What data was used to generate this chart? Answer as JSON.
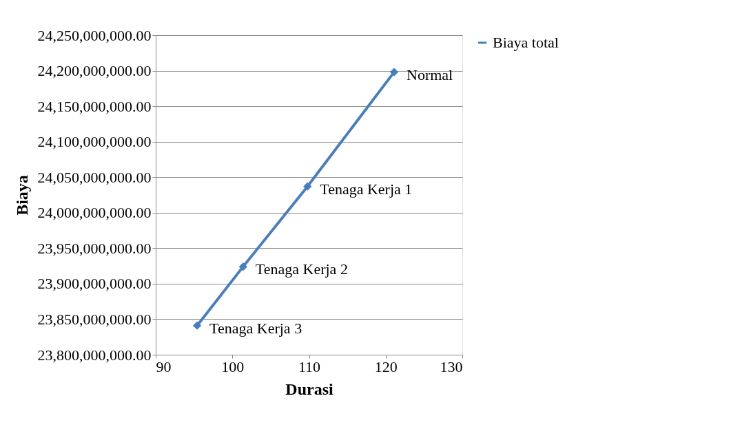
{
  "chart_data": {
    "type": "line",
    "xlabel": "Durasi",
    "ylabel": "Biaya",
    "series": [
      {
        "name": "Biaya total",
        "color": "#4a7ebb",
        "x": [
          95.4,
          101.4,
          109.8,
          121.1
        ],
        "values": [
          23841000000,
          23924000000,
          24037000000,
          24198000000
        ]
      }
    ],
    "xlim": [
      90,
      130
    ],
    "xticks": [
      90,
      100,
      110,
      120,
      130
    ],
    "ylim": [
      23800000000,
      24250000000
    ],
    "yticks": [
      {
        "value": 23800000000,
        "label": "23,800,000,000.00"
      },
      {
        "value": 23850000000,
        "label": "23,850,000,000.00"
      },
      {
        "value": 23900000000,
        "label": "23,900,000,000.00"
      },
      {
        "value": 23950000000,
        "label": "23,950,000,000.00"
      },
      {
        "value": 24000000000,
        "label": "24,000,000,000.00"
      },
      {
        "value": 24050000000,
        "label": "24,050,000,000.00"
      },
      {
        "value": 24100000000,
        "label": "24,100,000,000.00"
      },
      {
        "value": 24150000000,
        "label": "24,150,000,000.00"
      },
      {
        "value": 24200000000,
        "label": "24,200,000,000.00"
      },
      {
        "value": 24250000000,
        "label": "24,250,000,000.00"
      }
    ],
    "annotations": [
      {
        "text": "Tenaga Kerja 3",
        "x": 95.4,
        "y": 23841000000
      },
      {
        "text": "Tenaga Kerja 2",
        "x": 101.4,
        "y": 23924000000
      },
      {
        "text": "Tenaga Kerja 1",
        "x": 109.8,
        "y": 24037000000
      },
      {
        "text": "Normal",
        "x": 121.1,
        "y": 24198000000
      }
    ],
    "grid": "y",
    "legend": "right",
    "marker": "diamond",
    "line_style": "solid"
  }
}
